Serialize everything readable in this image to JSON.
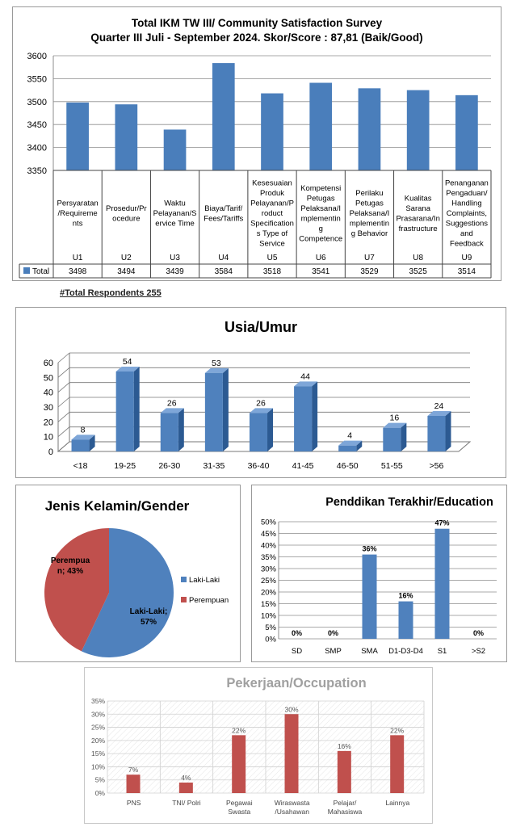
{
  "total_respondents_label": "#Total Respondents  255",
  "colors": {
    "ikm_bar": "#4a7ebb",
    "age_bar": "#4f81bd",
    "male": "#4f81bd",
    "female": "#c0504d",
    "education_bar": "#4f81bd",
    "occupation_bar": "#c0504d"
  },
  "chart_data": [
    {
      "type": "bar",
      "title": "Total IKM TW III/ Community Satisfaction Survey",
      "subtitle": "Quarter III Juli - September 2024. Skor/Score : 87,81 (Baik/Good)",
      "categories": [
        "U1",
        "U2",
        "U3",
        "U4",
        "U5",
        "U6",
        "U7",
        "U8",
        "U9"
      ],
      "category_descriptions": [
        [
          "Persyaratan",
          "/Requireme",
          "nts"
        ],
        [
          "Prosedur/Pr",
          "ocedure"
        ],
        [
          "Waktu",
          "Pelayanan/S",
          "ervice Time"
        ],
        [
          "Biaya/Tarif/",
          "Fees/Tariffs"
        ],
        [
          "Kesesuaian",
          "Produk",
          "Pelayanan/P",
          "roduct",
          "Specification",
          "s Type of",
          "Service"
        ],
        [
          "Kompetensi",
          "Petugas",
          "Pelaksana/I",
          "mplementin",
          "g",
          "Competence"
        ],
        [
          "Perilaku",
          "Petugas",
          "Pelaksana/I",
          "mplementin",
          "g Behavior"
        ],
        [
          "Kualitas",
          "Sarana",
          "Prasarana/In",
          "frastructure"
        ],
        [
          "Penanganan",
          "Pengaduan/",
          "Handling",
          "Complaints,",
          "Suggestions",
          "and",
          "Feedback"
        ]
      ],
      "series": [
        {
          "name": "Total",
          "values": [
            3498,
            3494,
            3439,
            3584,
            3518,
            3541,
            3529,
            3525,
            3514
          ]
        }
      ],
      "ylim": [
        3350,
        3600
      ],
      "yticks": [
        3350,
        3400,
        3450,
        3500,
        3550,
        3600
      ],
      "grid": true,
      "legend": "data-table"
    },
    {
      "type": "bar",
      "title": "Usia/Umur",
      "categories": [
        "<18",
        "19-25",
        "26-30",
        "31-35",
        "36-40",
        "41-45",
        "46-50",
        "51-55",
        ">56"
      ],
      "values": [
        8,
        54,
        26,
        53,
        26,
        44,
        4,
        16,
        24
      ],
      "ylim": [
        0,
        60
      ],
      "yticks": [
        0,
        10,
        20,
        30,
        40,
        50,
        60
      ],
      "grid": true,
      "style": "3d"
    },
    {
      "type": "pie",
      "title": "Jenis Kelamin/Gender",
      "labels": [
        "Laki-Laki",
        "Perempuan"
      ],
      "values": [
        57,
        43
      ],
      "slice_labels": [
        [
          "Laki-Laki;",
          "57%"
        ],
        [
          "Perempua",
          "n; 43%"
        ]
      ],
      "legend": "right"
    },
    {
      "type": "bar",
      "title": "Penddikan Terakhir/Education",
      "categories": [
        "SD",
        "SMP",
        "SMA",
        "D1-D3-D4",
        "S1",
        ">S2"
      ],
      "values": [
        0,
        0,
        36,
        16,
        47,
        0
      ],
      "value_labels": [
        "0%",
        "0%",
        "36%",
        "16%",
        "47%",
        "0%"
      ],
      "ylim": [
        0,
        50
      ],
      "yticks": [
        "0%",
        "5%",
        "10%",
        "15%",
        "20%",
        "25%",
        "30%",
        "35%",
        "40%",
        "45%",
        "50%"
      ],
      "grid": true
    },
    {
      "type": "bar",
      "title": "Pekerjaan/Occupation",
      "categories": [
        [
          "PNS"
        ],
        [
          "TNI/ Polri"
        ],
        [
          "Pegawai",
          "Swasta"
        ],
        [
          "Wiraswasta",
          "/Usahawan"
        ],
        [
          "Pelajar/",
          "Mahasiswa"
        ],
        [
          "Lainnya"
        ]
      ],
      "values": [
        7,
        4,
        22,
        30,
        16,
        22
      ],
      "value_labels": [
        "7%",
        "4%",
        "22%",
        "30%",
        "16%",
        "22%"
      ],
      "ylim": [
        0,
        35
      ],
      "yticks": [
        "0%",
        "5%",
        "10%",
        "15%",
        "20%",
        "25%",
        "30%",
        "35%"
      ],
      "grid": true
    }
  ]
}
